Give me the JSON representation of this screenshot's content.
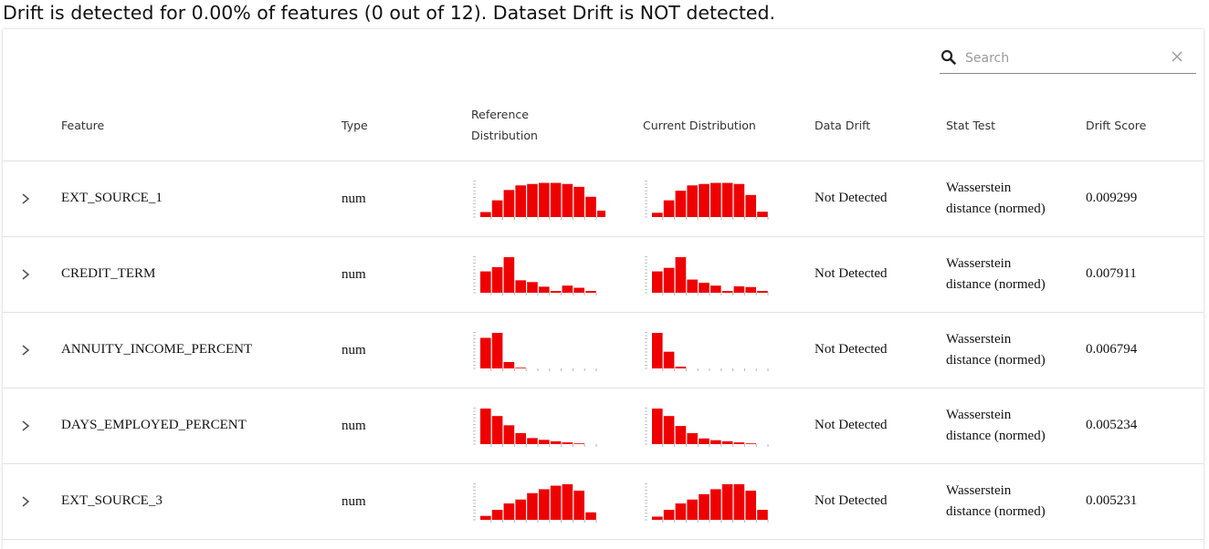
{
  "summary": "Drift is detected for 0.00% of features (0 out of 12). Dataset Drift is NOT detected.",
  "search": {
    "placeholder": "Search",
    "icon": "search-icon",
    "clear_icon": "close-icon"
  },
  "table": {
    "columns": {
      "feature": "Feature",
      "type": "Type",
      "ref_dist_line1": "Reference",
      "ref_dist_line2": "Distribution",
      "cur_dist": "Current Distribution",
      "data_drift": "Data Drift",
      "stat_test": "Stat Test",
      "drift_score": "Drift Score"
    },
    "rows": [
      {
        "feature": "EXT_SOURCE_1",
        "type": "num",
        "data_drift": "Not Detected",
        "stat_test_line1": "Wasserstein",
        "stat_test_line2": "distance (normed)",
        "drift_score": "0.009299",
        "reference_hist": [
          0.14,
          0.47,
          0.76,
          0.89,
          0.93,
          0.96,
          0.96,
          0.93,
          0.85,
          0.57,
          0.18
        ],
        "current_hist": [
          0.12,
          0.47,
          0.74,
          0.89,
          0.93,
          0.96,
          0.96,
          0.93,
          0.62,
          0.15
        ]
      },
      {
        "feature": "CREDIT_TERM",
        "type": "num",
        "data_drift": "Not Detected",
        "stat_test_line1": "Wasserstein",
        "stat_test_line2": "distance (normed)",
        "drift_score": "0.007911",
        "reference_hist": [
          0.6,
          0.72,
          1.0,
          0.35,
          0.3,
          0.17,
          0.05,
          0.2,
          0.14,
          0.05
        ],
        "current_hist": [
          0.6,
          0.7,
          1.0,
          0.37,
          0.28,
          0.2,
          0.05,
          0.18,
          0.16,
          0.05
        ]
      },
      {
        "feature": "ANNUITY_INCOME_PERCENT",
        "type": "num",
        "data_drift": "Not Detected",
        "stat_test_line1": "Wasserstein",
        "stat_test_line2": "distance (normed)",
        "drift_score": "0.006794",
        "reference_hist": [
          0.86,
          1.0,
          0.18,
          0.02,
          0,
          0,
          0,
          0,
          0,
          0
        ],
        "current_hist": [
          1.0,
          0.47,
          0.05,
          0,
          0,
          0,
          0,
          0,
          0,
          0
        ]
      },
      {
        "feature": "DAYS_EMPLOYED_PERCENT",
        "type": "num",
        "data_drift": "Not Detected",
        "stat_test_line1": "Wasserstein",
        "stat_test_line2": "distance (normed)",
        "drift_score": "0.005234",
        "reference_hist": [
          1.0,
          0.79,
          0.53,
          0.31,
          0.17,
          0.12,
          0.08,
          0.05,
          0.02
        ],
        "current_hist": [
          1.0,
          0.79,
          0.51,
          0.31,
          0.16,
          0.11,
          0.08,
          0.05,
          0.02
        ]
      },
      {
        "feature": "EXT_SOURCE_3",
        "type": "num",
        "data_drift": "Not Detected",
        "stat_test_line1": "Wasserstein",
        "stat_test_line2": "distance (normed)",
        "drift_score": "0.005231",
        "reference_hist": [
          0.11,
          0.28,
          0.46,
          0.57,
          0.75,
          0.86,
          0.96,
          1.0,
          0.82,
          0.21
        ],
        "current_hist": [
          0.09,
          0.28,
          0.46,
          0.57,
          0.72,
          0.86,
          1.0,
          1.0,
          0.82,
          0.28
        ]
      }
    ]
  },
  "colors": {
    "bar": "#ee0000",
    "axis_tick": "#b5b5b5",
    "border": "#e2e2e2"
  }
}
